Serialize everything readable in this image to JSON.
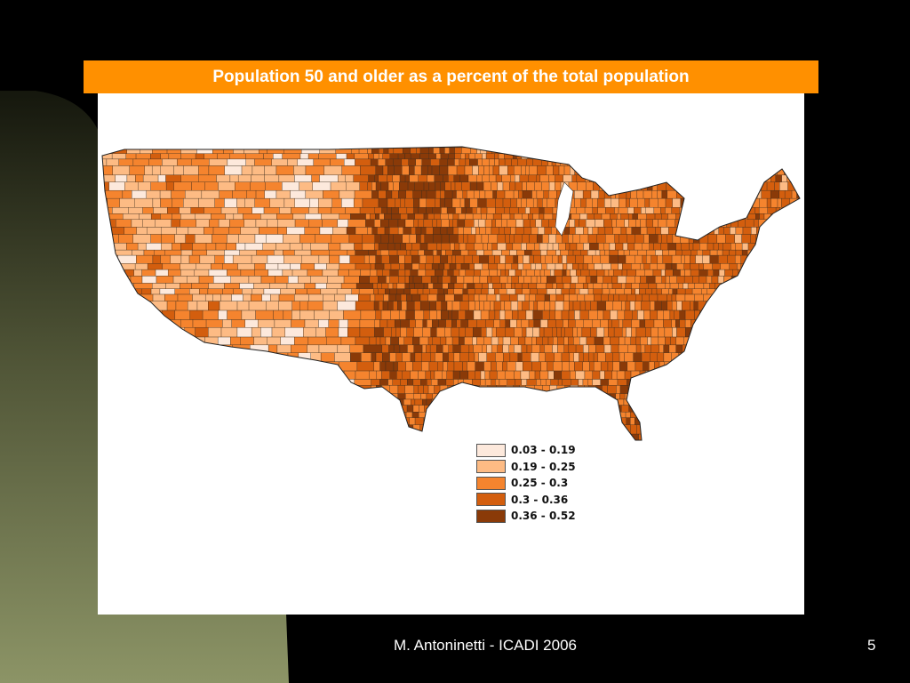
{
  "slide": {
    "title": "Population 50 and older as a percent of the total population",
    "footer": "M. Antoninetti - ICADI 2006",
    "page_number": "5"
  },
  "theme": {
    "background": "#000000",
    "accent_bar": "#ff9000",
    "side_gradient_top": "#1c1f12",
    "side_gradient_bottom": "#8c9466"
  },
  "legend": {
    "items": [
      {
        "label": "0.03 - 0.19",
        "color": "#fde9dc"
      },
      {
        "label": "0.19 - 0.25",
        "color": "#fdbb84"
      },
      {
        "label": "0.25 - 0.3",
        "color": "#f5842e"
      },
      {
        "label": "0.3 - 0.36",
        "color": "#d35e0e"
      },
      {
        "label": "0.36 - 0.52",
        "color": "#8a3a08"
      }
    ]
  },
  "map": {
    "subject": "Contiguous United States counties",
    "class_colors": [
      "#fde9dc",
      "#fdbb84",
      "#f5842e",
      "#d35e0e",
      "#8a3a08"
    ]
  }
}
